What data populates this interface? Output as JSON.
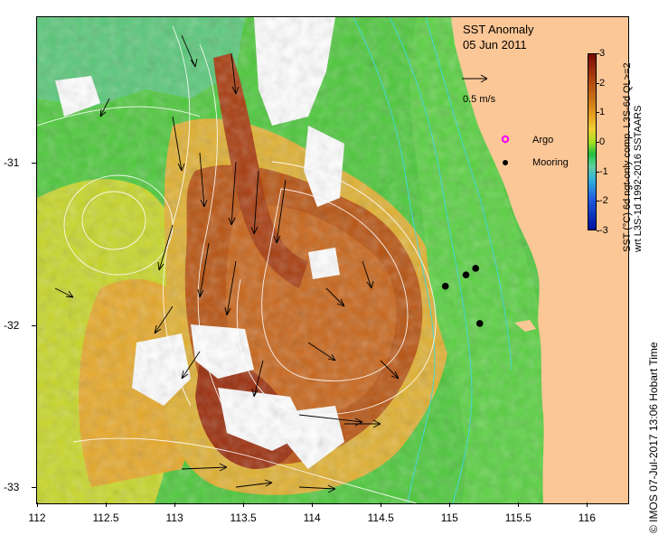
{
  "map": {
    "title": "SST Anomaly",
    "date": "05 Jun 2011",
    "x_ticks": [
      "112",
      "112.5",
      "113",
      "113.5",
      "114",
      "114.5",
      "115",
      "115.5",
      "116"
    ],
    "y_ticks": [
      "-31",
      "-32",
      "-33"
    ],
    "lon_range": [
      112,
      116.3
    ],
    "lat_range": [
      -30.1,
      -33.1
    ],
    "scale_arrow_label": "0.5 m/s",
    "legend": {
      "argo_label": "Argo",
      "mooring_label": "Mooring",
      "argo_color": "#ff00ff",
      "mooring_color": "#000000"
    },
    "colorbar": {
      "labels": [
        "3",
        "2",
        "1",
        "0",
        "-1",
        "-2",
        "-3"
      ],
      "title_line1": "SST (°C) 6d ngt-only comp. L3S-6d QL>=2",
      "title_line2": "wrt L3S-1d 1992-2016 SSTAARS"
    },
    "land_color": "#fcc796",
    "moorings": [
      {
        "lon": 114.97,
        "lat": -31.76
      },
      {
        "lon": 115.12,
        "lat": -31.69
      },
      {
        "lon": 115.19,
        "lat": -31.65
      },
      {
        "lon": 115.22,
        "lat": -31.99
      }
    ],
    "credit": "© IMOS 07-Jul-2017 13:06 Hobart Time"
  }
}
